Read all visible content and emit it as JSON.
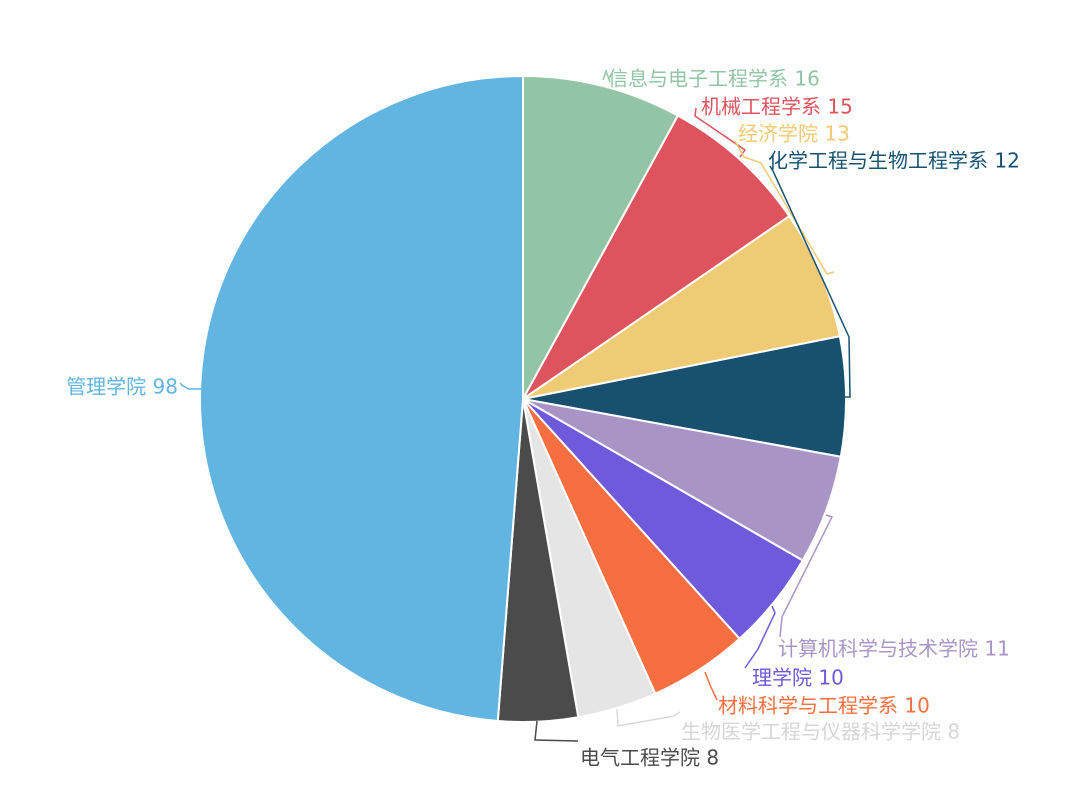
{
  "chart_data": {
    "type": "pie",
    "title": "",
    "slices": [
      {
        "label": "信息与电子工程学系",
        "value": 16,
        "color": "#93c4a5"
      },
      {
        "label": "机械工程学系",
        "value": 15,
        "color": "#dd545e"
      },
      {
        "label": "经济学院",
        "value": 13,
        "color": "#eecb74"
      },
      {
        "label": "化学工程与生物工程学系",
        "value": 12,
        "color": "#17516f"
      },
      {
        "label": "计算机科学与技术学院",
        "value": 11,
        "color": "#a995c5"
      },
      {
        "label": "理学院",
        "value": 10,
        "color": "#6e5adb"
      },
      {
        "label": "材料科学与工程学系",
        "value": 10,
        "color": "#f76f41"
      },
      {
        "label": "生物医学工程与仪器科学学院",
        "value": 8,
        "color": "#e5e5e5"
      },
      {
        "label": "电气工程学院",
        "value": 8,
        "color": "#4b4b4b"
      },
      {
        "label": "管理学院",
        "value": 98,
        "color": "#62b4e1"
      }
    ],
    "legend": "none"
  }
}
